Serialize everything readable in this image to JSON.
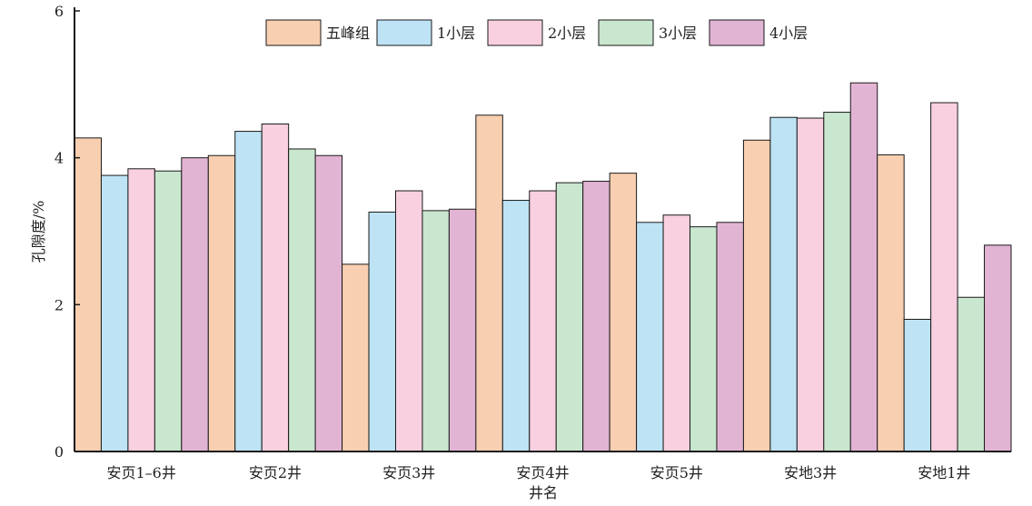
{
  "chart_data": {
    "type": "bar",
    "title": "",
    "xlabel": "井名",
    "ylabel": "孔隙度/%",
    "ylim": [
      0,
      6
    ],
    "yticks": [
      0,
      2,
      4,
      6
    ],
    "grid": false,
    "legend_position": "top",
    "categories": [
      "安页1–6井",
      "安页2井",
      "安页3井",
      "安页4井",
      "安页5井",
      "安地3井",
      "安地1井"
    ],
    "series": [
      {
        "name": "五峰组",
        "color": "#f8cfb0",
        "values": [
          4.27,
          4.03,
          2.55,
          4.58,
          3.79,
          4.24,
          4.04
        ]
      },
      {
        "name": "1小层",
        "color": "#bde3f5",
        "values": [
          3.76,
          4.36,
          3.26,
          3.42,
          3.12,
          4.55,
          1.8
        ]
      },
      {
        "name": "2小层",
        "color": "#f8d0e0",
        "values": [
          3.85,
          4.46,
          3.55,
          3.55,
          3.22,
          4.54,
          4.75
        ]
      },
      {
        "name": "3小层",
        "color": "#c9e6cf",
        "values": [
          3.82,
          4.12,
          3.28,
          3.66,
          3.06,
          4.62,
          2.1
        ]
      },
      {
        "name": "4小层",
        "color": "#e2b4d3",
        "values": [
          4.0,
          4.03,
          3.3,
          3.68,
          3.12,
          5.02,
          2.81
        ]
      }
    ]
  }
}
